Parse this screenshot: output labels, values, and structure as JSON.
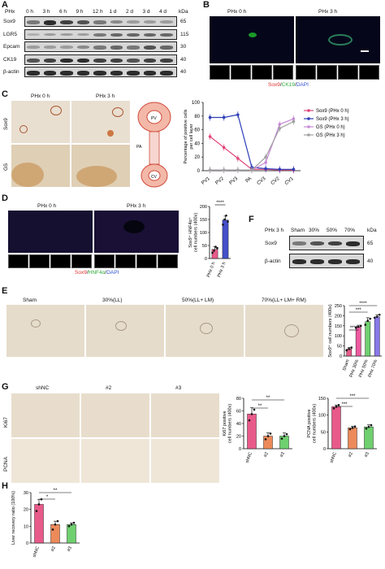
{
  "panels": {
    "A": "A",
    "B": "B",
    "C": "C",
    "D": "D",
    "E": "E",
    "F": "F",
    "G": "G",
    "H": "H"
  },
  "panelA": {
    "phx_label": "PHx",
    "timepoints": [
      "0 h",
      "3 h",
      "6 h",
      "9 h",
      "12 h",
      "1 d",
      "2 d",
      "3 d",
      "4 d"
    ],
    "kda_label": "kDa",
    "rows": [
      {
        "name": "Sox9",
        "kda": "65"
      },
      {
        "name": "LGR5",
        "kda": "115"
      },
      {
        "name": "Epcam",
        "kda": "30"
      },
      {
        "name": "CK19",
        "kda": "40"
      },
      {
        "name": "β-actin",
        "kda": "40"
      }
    ]
  },
  "panelB": {
    "titles": [
      "PHx 0 h",
      "PHx 3 h"
    ],
    "legend": {
      "sox9": "Sox9",
      "sep1": "/",
      "ck19": "CK19",
      "sep2": "/",
      "dapi": "DAPI"
    },
    "colors": {
      "sox9": "#e03030",
      "ck19": "#2fae3a",
      "dapi": "#3050d0"
    }
  },
  "panelC": {
    "titles": [
      "PHx 0 h",
      "PHx 3 h"
    ],
    "rows": [
      "Sox9",
      "GS"
    ],
    "diagram_labels": {
      "pv": "PV",
      "pa": "PA",
      "cv": "CV"
    },
    "chart": {
      "ylabel": "Percentage of positive cells per cell layer",
      "yticks": [
        "0",
        "20",
        "40",
        "60",
        "80",
        "100"
      ],
      "xticks": [
        "PV1",
        "PV2",
        "PV3",
        "PA",
        "CV3",
        "CV2",
        "CV1"
      ],
      "legend": [
        "Sox9 (PHx 0 h)",
        "Sox9 (PHx 3 h)",
        "GS (PHx 0 h)",
        "GS (PHx 3 h)"
      ]
    }
  },
  "panelD": {
    "titles": [
      "PHx 0 h",
      "PHx 3 h"
    ],
    "legend": {
      "sox9": "Sox9",
      "sep1": "/",
      "hnf": "HNF4α",
      "sep2": "/",
      "dapi": "DAPI"
    },
    "chart": {
      "ylabel": "Sox9⁺ HNF4α⁺ cell numbers (400x)",
      "yticks": [
        "0",
        "50",
        "100",
        "150",
        "200"
      ],
      "categories": [
        "PHx 0 h",
        "PHx 3 h"
      ],
      "sig": "****"
    }
  },
  "panelE": {
    "titles": [
      "Sham",
      "30%(LL)",
      "50%(LL+ LM)",
      "70%(LL+ LM+ RM)"
    ],
    "chart": {
      "ylabel": "Sox9⁺ cell numbers (400x)",
      "yticks": [
        "0",
        "50",
        "100",
        "150",
        "200",
        "250"
      ],
      "categories": [
        "Sham",
        "PHx 30%",
        "PHx 50%",
        "PHx 70%"
      ],
      "sigs": [
        "****",
        "***",
        "****"
      ]
    }
  },
  "panelF": {
    "header": "PHx 3 h",
    "lanes": [
      "Sham",
      "30%",
      "50%",
      "70%"
    ],
    "kda_label": "kDa",
    "rows": [
      {
        "name": "Sox9",
        "kda": "65"
      },
      {
        "name": "β-actin",
        "kda": "40"
      }
    ]
  },
  "panelG": {
    "titles": [
      "shNC",
      "#2",
      "#3"
    ],
    "rows": [
      "Ki67",
      "PCNA"
    ],
    "chart1": {
      "ylabel": "Ki67 positive cell numbers (400x)",
      "yticks": [
        "0",
        "20",
        "40",
        "60",
        "80"
      ],
      "categories": [
        "shNC",
        "#2",
        "#3"
      ],
      "sigs": [
        "**",
        "**"
      ]
    },
    "chart2": {
      "ylabel": "PCNA positive cell numbers (400x)",
      "yticks": [
        "0",
        "50",
        "100",
        "150"
      ],
      "categories": [
        "shNC",
        "#2",
        "#3"
      ],
      "sigs": [
        "***",
        "***"
      ]
    }
  },
  "panelH": {
    "ylabel": "Liver recovery ratio (100%)",
    "yticks": [
      "0",
      "10",
      "20",
      "30"
    ],
    "categories": [
      "shNC",
      "#2",
      "#3"
    ],
    "sigs": [
      "*",
      "**"
    ]
  },
  "chart_data": [
    {
      "type": "line",
      "categories": [
        "PV1",
        "PV2",
        "PV3",
        "PA",
        "CV3",
        "CV2",
        "CV1"
      ],
      "ylim": [
        0,
        100
      ],
      "series": [
        {
          "name": "Sox9 (PHx 0 h)",
          "color": "#e0457a",
          "values": [
            50,
            34,
            18,
            2,
            2,
            1,
            1
          ]
        },
        {
          "name": "Sox9 (PHx 3 h)",
          "color": "#2e3fb8",
          "values": [
            78,
            78,
            82,
            5,
            3,
            2,
            2
          ]
        },
        {
          "name": "GS (PHx 0 h)",
          "color": "#c889d8",
          "values": [
            1,
            1,
            1,
            1,
            12,
            68,
            76
          ]
        },
        {
          "name": "GS (PHx 3 h)",
          "color": "#a0a0a0",
          "values": [
            1,
            1,
            1,
            1,
            20,
            62,
            72
          ]
        }
      ]
    },
    {
      "type": "bar",
      "categories": [
        "PHx 0 h",
        "PHx 3 h"
      ],
      "values": [
        35,
        148
      ],
      "errors": [
        10,
        15
      ],
      "colors": [
        "#e85a8a",
        "#4450c8"
      ],
      "ylim": [
        0,
        200
      ],
      "points": [
        [
          22,
          30,
          45,
          40
        ],
        [
          130,
          150,
          165,
          142
        ]
      ]
    },
    {
      "type": "bar",
      "categories": [
        "Sham",
        "PHx 30%",
        "PHx 50%",
        "PHx 70%"
      ],
      "values": [
        35,
        145,
        170,
        195
      ],
      "errors": [
        8,
        8,
        20,
        10
      ],
      "colors": [
        "#e85a8a",
        "#ec5aa0",
        "#6fd06f",
        "#8878e8"
      ],
      "ylim": [
        0,
        250
      ],
      "points": [
        [
          28,
          35,
          42
        ],
        [
          140,
          145,
          150
        ],
        [
          155,
          175,
          185
        ],
        [
          190,
          195,
          205
        ]
      ]
    },
    {
      "type": "bar",
      "categories": [
        "shNC",
        "#2",
        "#3"
      ],
      "values": [
        55,
        20,
        20
      ],
      "errors": [
        10,
        5,
        5
      ],
      "colors": [
        "#e85a8a",
        "#ec8a5a",
        "#6fd06f"
      ],
      "ylim": [
        0,
        80
      ],
      "points": [
        [
          45,
          55,
          62
        ],
        [
          15,
          20,
          24
        ],
        [
          16,
          20,
          23
        ]
      ]
    },
    {
      "type": "bar",
      "categories": [
        "shNC",
        "#2",
        "#3"
      ],
      "values": [
        125,
        62,
        65
      ],
      "errors": [
        5,
        5,
        6
      ],
      "colors": [
        "#e85a8a",
        "#ec8a5a",
        "#6fd06f"
      ],
      "ylim": [
        0,
        150
      ],
      "points": [
        [
          120,
          125,
          130
        ],
        [
          58,
          62,
          66
        ],
        [
          60,
          65,
          70
        ]
      ]
    },
    {
      "type": "bar",
      "categories": [
        "shNC",
        "#2",
        "#3"
      ],
      "values": [
        23,
        11,
        11
      ],
      "errors": [
        3,
        2,
        1
      ],
      "colors": [
        "#e85a8a",
        "#ec8a5a",
        "#6fd06f"
      ],
      "ylim": [
        0,
        30
      ],
      "points": [
        [
          19,
          23,
          26
        ],
        [
          8,
          11,
          13
        ],
        [
          10,
          11,
          12
        ]
      ]
    }
  ]
}
